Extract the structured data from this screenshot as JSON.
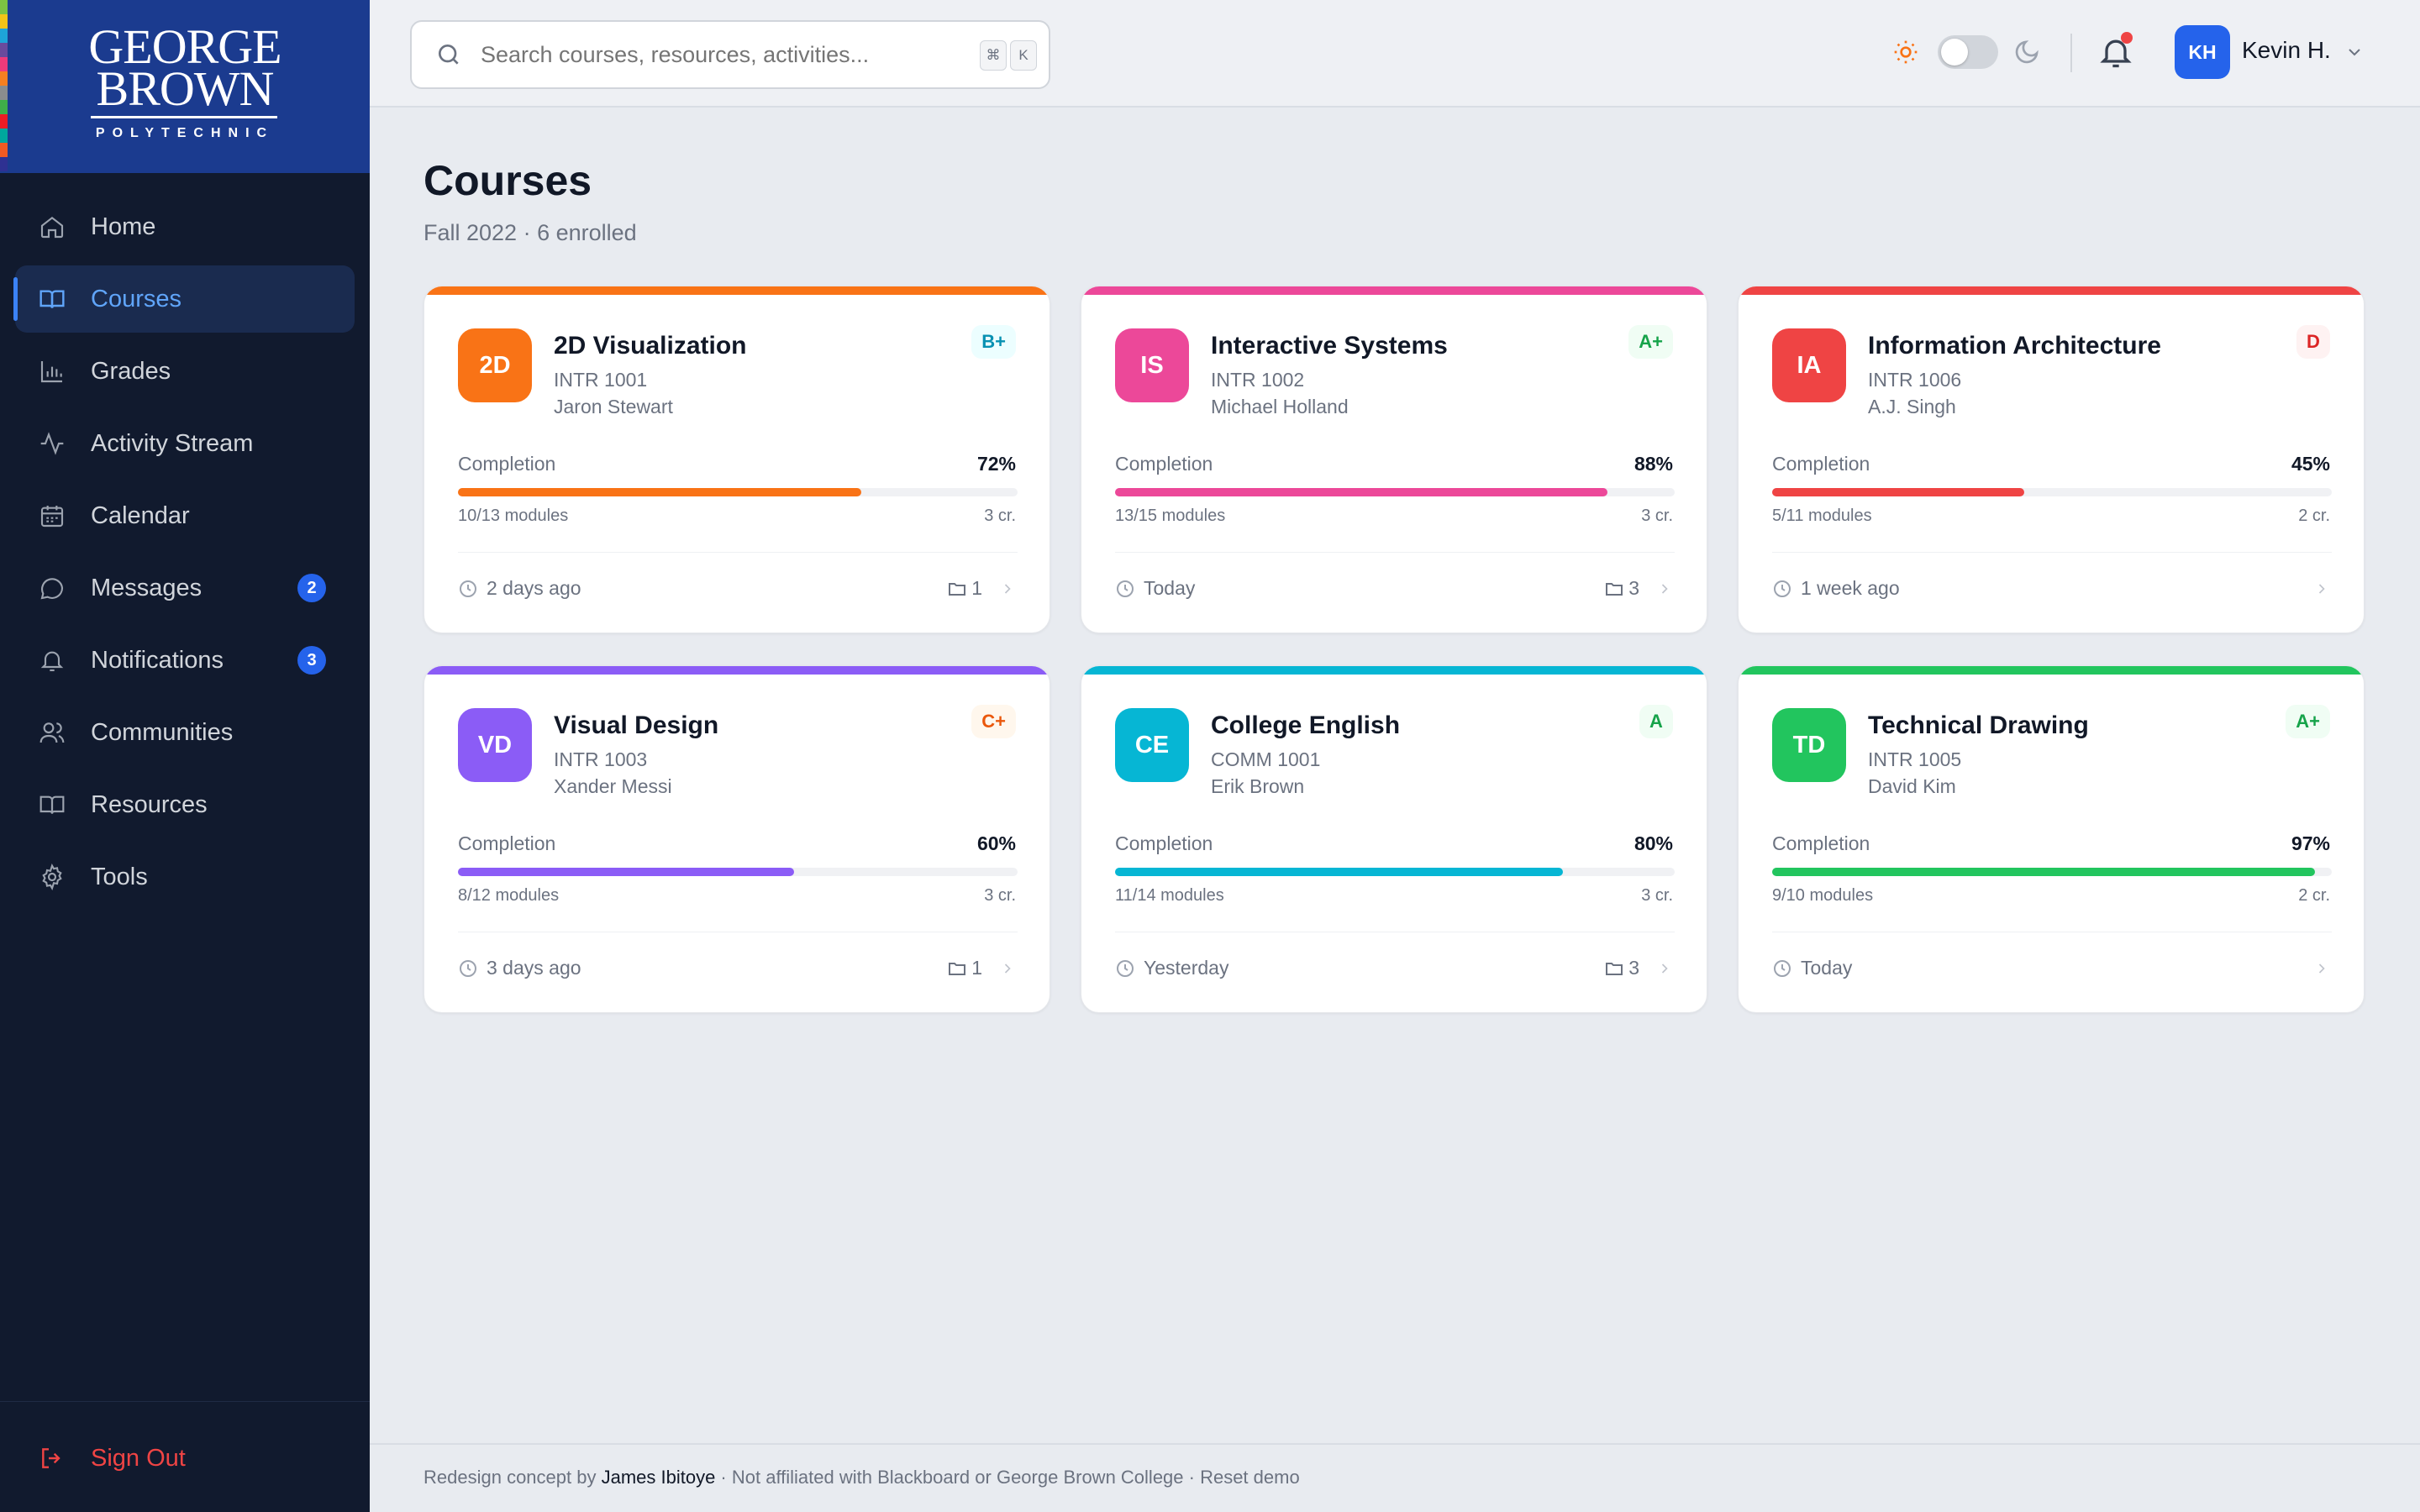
{
  "brand": {
    "line1": "GEORGE",
    "line2": "BROWN",
    "line3": "POLYTECHNIC",
    "stripe_colors": [
      "#7cc242",
      "#f2c417",
      "#1ea4d8",
      "#6a4a9c",
      "#ee3a7a",
      "#f57f21",
      "#8a8c8e",
      "#3fae49",
      "#ed1c24",
      "#00a79d",
      "#f15a22",
      "#2e3192"
    ]
  },
  "sidebar": {
    "items": [
      {
        "label": "Home",
        "icon": "home-icon"
      },
      {
        "label": "Courses",
        "icon": "book-icon",
        "active": true
      },
      {
        "label": "Grades",
        "icon": "bar-chart-icon"
      },
      {
        "label": "Activity Stream",
        "icon": "activity-icon"
      },
      {
        "label": "Calendar",
        "icon": "calendar-icon"
      },
      {
        "label": "Messages",
        "icon": "message-icon",
        "badge": "2"
      },
      {
        "label": "Notifications",
        "icon": "bell-icon",
        "badge": "3"
      },
      {
        "label": "Communities",
        "icon": "users-icon"
      },
      {
        "label": "Resources",
        "icon": "book-open-icon"
      },
      {
        "label": "Tools",
        "icon": "gear-icon"
      }
    ],
    "signout": "Sign Out"
  },
  "topbar": {
    "search_placeholder": "Search courses, resources, activities...",
    "kbd": [
      "⌘",
      "K"
    ],
    "user_initials": "KH",
    "user_name": "Kevin H."
  },
  "page": {
    "title": "Courses",
    "subtitle": "Fall 2022 · 6 enrolled"
  },
  "courses": [
    {
      "initials": "2D",
      "title": "2D Visualization",
      "code": "INTR 1001",
      "instructor": "Jaron Stewart",
      "grade": "B+",
      "completion_label": "Completion",
      "percent_text": "72%",
      "progress": 0.72,
      "modules": "10/13 modules",
      "credits": "3 cr.",
      "last_active": "2 days ago",
      "files": "1",
      "color": "#f97316",
      "grade_color": "#0891b2",
      "grade_bg": "#ecfeff"
    },
    {
      "initials": "IS",
      "title": "Interactive Systems",
      "code": "INTR 1002",
      "instructor": "Michael Holland",
      "grade": "A+",
      "completion_label": "Completion",
      "percent_text": "88%",
      "progress": 0.88,
      "modules": "13/15 modules",
      "credits": "3 cr.",
      "last_active": "Today",
      "files": "3",
      "color": "#ec4899",
      "grade_color": "#16a34a",
      "grade_bg": "#f0fdf4"
    },
    {
      "initials": "IA",
      "title": "Information Architecture",
      "code": "INTR 1006",
      "instructor": "A.J. Singh",
      "grade": "D",
      "completion_label": "Completion",
      "percent_text": "45%",
      "progress": 0.45,
      "modules": "5/11 modules",
      "credits": "2 cr.",
      "last_active": "1 week ago",
      "files": "",
      "color": "#ef4444",
      "grade_color": "#dc2626",
      "grade_bg": "#fef2f2"
    },
    {
      "initials": "VD",
      "title": "Visual Design",
      "code": "INTR 1003",
      "instructor": "Xander Messi",
      "grade": "C+",
      "completion_label": "Completion",
      "percent_text": "60%",
      "progress": 0.6,
      "modules": "8/12 modules",
      "credits": "3 cr.",
      "last_active": "3 days ago",
      "files": "1",
      "color": "#8b5cf6",
      "grade_color": "#ea580c",
      "grade_bg": "#fff7ed"
    },
    {
      "initials": "CE",
      "title": "College English",
      "code": "COMM 1001",
      "instructor": "Erik Brown",
      "grade": "A",
      "completion_label": "Completion",
      "percent_text": "80%",
      "progress": 0.8,
      "modules": "11/14 modules",
      "credits": "3 cr.",
      "last_active": "Yesterday",
      "files": "3",
      "color": "#06b6d4",
      "grade_color": "#16a34a",
      "grade_bg": "#f0fdf4"
    },
    {
      "initials": "TD",
      "title": "Technical Drawing",
      "code": "INTR 1005",
      "instructor": "David Kim",
      "grade": "A+",
      "completion_label": "Completion",
      "percent_text": "97%",
      "progress": 0.97,
      "modules": "9/10 modules",
      "credits": "2 cr.",
      "last_active": "Today",
      "files": "",
      "color": "#22c55e",
      "grade_color": "#16a34a",
      "grade_bg": "#f0fdf4"
    }
  ],
  "footer": {
    "prefix": "Redesign concept by ",
    "author": "James Ibitoye",
    "suffix": " · Not affiliated with Blackboard or George Brown College · Reset demo"
  }
}
